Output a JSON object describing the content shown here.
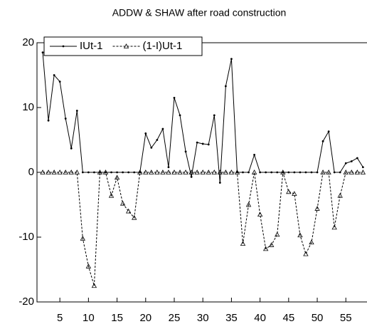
{
  "chart_data": {
    "type": "line",
    "title": "ADDW & SHAW after road construction",
    "x": [
      2,
      3,
      4,
      5,
      6,
      7,
      8,
      9,
      10,
      11,
      12,
      13,
      14,
      15,
      16,
      17,
      18,
      19,
      20,
      21,
      22,
      23,
      24,
      25,
      26,
      27,
      28,
      29,
      30,
      31,
      32,
      33,
      34,
      35,
      36,
      37,
      38,
      39,
      40,
      41,
      42,
      43,
      44,
      45,
      46,
      47,
      48,
      49,
      50,
      51,
      52,
      53,
      54,
      55,
      56,
      57,
      58
    ],
    "series": [
      {
        "name": "IUt-1",
        "color": "#000000",
        "marker": "dot",
        "dashed": false,
        "values": [
          18.5,
          8,
          15,
          14,
          8.3,
          3.7,
          9.5,
          0,
          0,
          0,
          0,
          0,
          0,
          0,
          0,
          0,
          0,
          0,
          6,
          3.8,
          5,
          6.7,
          0.8,
          11.5,
          8.8,
          3.2,
          -0.7,
          4.6,
          4.4,
          4.3,
          8.8,
          -1.6,
          13.3,
          17.5,
          0,
          0,
          0,
          2.7,
          0,
          0,
          0,
          0,
          0,
          0,
          0,
          0,
          0,
          0,
          0,
          4.8,
          6.3,
          0,
          0,
          1.4,
          1.7,
          2.2,
          0.8
        ]
      },
      {
        "name": "(1-I)Ut-1",
        "color": "#000000",
        "marker": "triangle",
        "dashed": true,
        "values": [
          0,
          0,
          0,
          0,
          0,
          0,
          0,
          -10.2,
          -14.5,
          -17.5,
          0,
          0,
          -3.6,
          -0.8,
          -4.8,
          -6,
          -7,
          0,
          0,
          0,
          0,
          0,
          0,
          0,
          0,
          0,
          0,
          0,
          0,
          0,
          0,
          0,
          0,
          0,
          0,
          -11,
          -5,
          0,
          -6.5,
          -11.8,
          -11.2,
          -9.6,
          0,
          -3,
          -3.3,
          -9.7,
          -12.6,
          -10.8,
          -5.6,
          0,
          0,
          -8.5,
          -3.6,
          0,
          0,
          0,
          0
        ]
      }
    ],
    "xlim": [
      1,
      58.7
    ],
    "xticks": [
      5,
      10,
      15,
      20,
      25,
      30,
      35,
      40,
      45,
      50,
      55
    ],
    "ylim": [
      -20,
      20
    ],
    "yticks": [
      -20,
      -10,
      0,
      10,
      20
    ],
    "legend": "top-left"
  }
}
